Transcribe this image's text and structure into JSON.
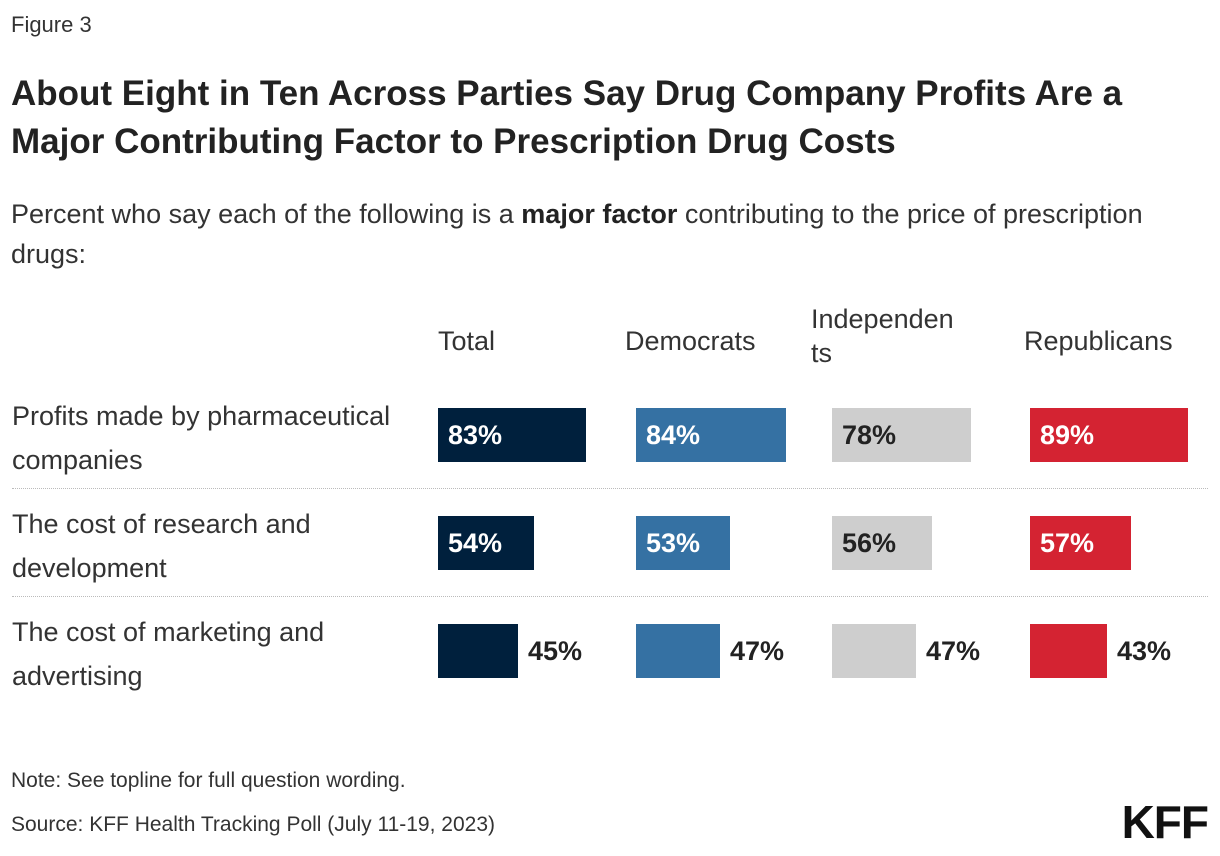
{
  "figure_label": "Figure 3",
  "title": "About Eight in Ten Across Parties Say Drug Company Profits Are a Major Contributing Factor to Prescription Drug Costs",
  "subtitle": {
    "before": "Percent who say each of the following is a ",
    "bold": "major factor",
    "after": " contributing to the price of prescription drugs:"
  },
  "chart_data": {
    "type": "bar",
    "categories": [
      "Profits made by pharmaceutical companies",
      "The cost of research and development",
      "The cost of marketing and advertising"
    ],
    "series": [
      {
        "name": "Total",
        "values": [
          83,
          54,
          45
        ],
        "labels": [
          "83%",
          "54%",
          "45%"
        ],
        "color": "#00203d",
        "text_color": "#ffffff"
      },
      {
        "name": "Democrats",
        "values": [
          84,
          53,
          47
        ],
        "labels": [
          "84%",
          "53%",
          "47%"
        ],
        "color": "#3571a3",
        "text_color": "#ffffff"
      },
      {
        "name": "Independents",
        "header_lines": [
          "Independen",
          "ts"
        ],
        "values": [
          78,
          56,
          47
        ],
        "labels": [
          "78%",
          "56%",
          "47%"
        ],
        "color": "#cecece",
        "text_color": "#222222"
      },
      {
        "name": "Republicans",
        "values": [
          89,
          57,
          43
        ],
        "labels": [
          "89%",
          "57%",
          "43%"
        ],
        "color": "#d42332",
        "text_color": "#ffffff"
      }
    ],
    "xlim": [
      0,
      100
    ],
    "legend": "column headers",
    "grid": false
  },
  "note": "Note: See topline for full question wording.",
  "source": "Source: KFF Health Tracking Poll (July 11-19, 2023)",
  "logo": "KFF"
}
